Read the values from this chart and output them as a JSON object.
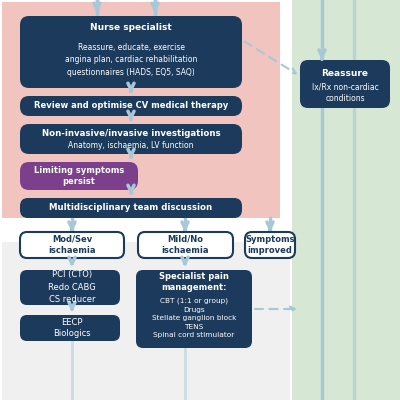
{
  "bg_pink": "#f2c4c0",
  "bg_green": "#d6e8d4",
  "bg_bottom": "#eeeeee",
  "box_dark": "#1b3a5c",
  "box_purple": "#7b3f8c",
  "arrow_color": "#a8c8d8",
  "text_white": "#ffffff",
  "text_dark": "#1b3a5c",
  "nurse_title": "Nurse specialist",
  "nurse_body": "Reassure, educate, exercise\nangina plan, cardiac rehabilitation\nquestionnaires (HADS, EQ5, SAQ)",
  "review_text": "Review and optimise CV medical therapy",
  "ni_title": "Non-invasive/invasive investigations",
  "ni_body": "Anatomy, ischaemia, LV function",
  "limiting_text": "Limiting symptoms\npersist",
  "mdt_text": "Multidisciplinary team discussion",
  "mod_sev_text": "Mod/Sev\nischaemia",
  "mild_no_text": "Mild/No\nischaemia",
  "symptoms_improved_text": "Symptoms\nimproved",
  "pci_text": "PCI (CTO)\nRedo CABG\nCS reducer",
  "eecp_text": "EECP\nBiologics",
  "pain_title": "Specialist pain\nmanagement:",
  "pain_body": "CBT (1:1 or group)\nDrugs\nStellate ganglion block\nTENS\nSpinal cord stimulator",
  "reassure_title": "Reassure",
  "reassure_body": "Ix/Rx non-cardiac\nconditions"
}
